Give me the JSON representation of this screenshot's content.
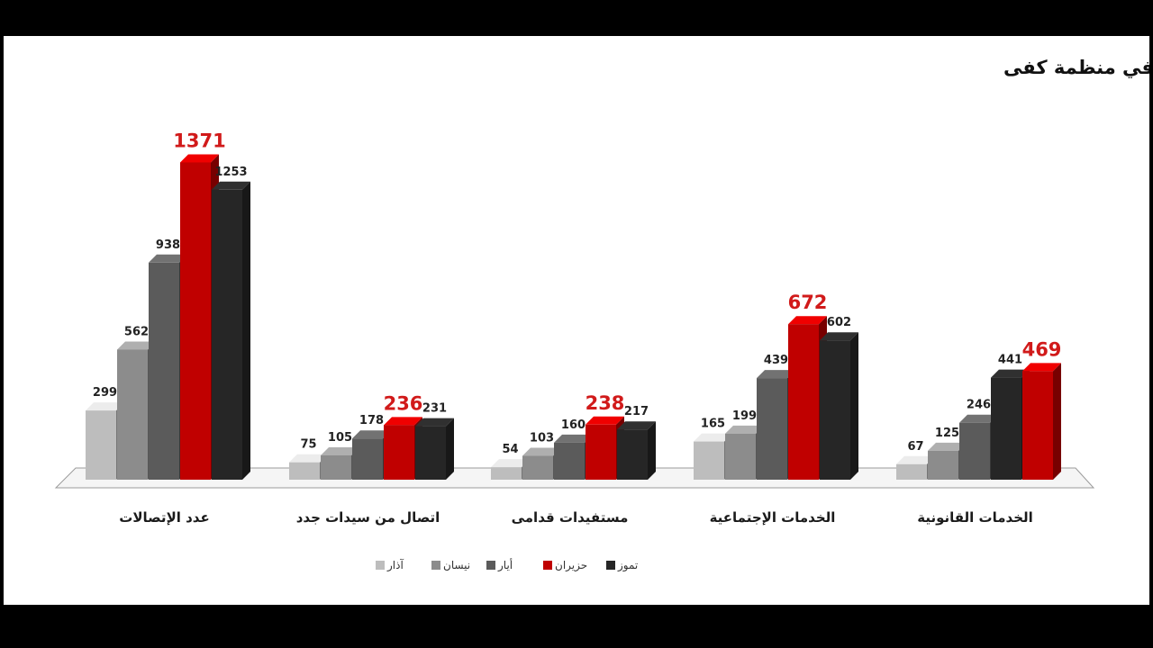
{
  "chart_data": {
    "type": "bar",
    "title": "تصاعد وتيرة العنف خلال الأشهر الخمسة للحجر المنزلي بحسب مركز الدعم في منظمة كفى",
    "categories": [
      "عدد الإتصالات",
      "اتصال من سيدات جدد",
      "مستفيدات قدامى",
      "الخدمات الإجتماعية",
      "الخدمات القانونية"
    ],
    "series": [
      {
        "name": "آذار",
        "color": "#bdbdbd",
        "values": [
          299,
          75,
          54,
          165,
          67
        ]
      },
      {
        "name": "نيسان",
        "color": "#8c8c8c",
        "values": [
          562,
          105,
          103,
          199,
          125
        ]
      },
      {
        "name": "أيار",
        "color": "#5b5b5b",
        "values": [
          938,
          178,
          160,
          439,
          246
        ]
      },
      {
        "name": "حزيران",
        "color": "#c00000",
        "values": [
          1371,
          236,
          238,
          672,
          469
        ]
      },
      {
        "name": "تموز",
        "color": "#262626",
        "values": [
          1253,
          231,
          217,
          602,
          441
        ]
      }
    ],
    "bar_order_per_category": [
      [
        "آذار",
        "نيسان",
        "أيار",
        "حزيران",
        "تموز"
      ],
      [
        "آذار",
        "نيسان",
        "أيار",
        "حزيران",
        "تموز"
      ],
      [
        "آذار",
        "نيسان",
        "أيار",
        "حزيران",
        "تموز"
      ],
      [
        "آذار",
        "نيسان",
        "أيار",
        "حزيران",
        "تموز"
      ],
      [
        "آذار",
        "نيسان",
        "أيار",
        "تموز",
        "حزيران"
      ]
    ],
    "highlight_series": "حزيران",
    "ylim": [
      0,
      1400
    ],
    "grid": false,
    "legend_position": "bottom-center",
    "style": "3d-column"
  }
}
